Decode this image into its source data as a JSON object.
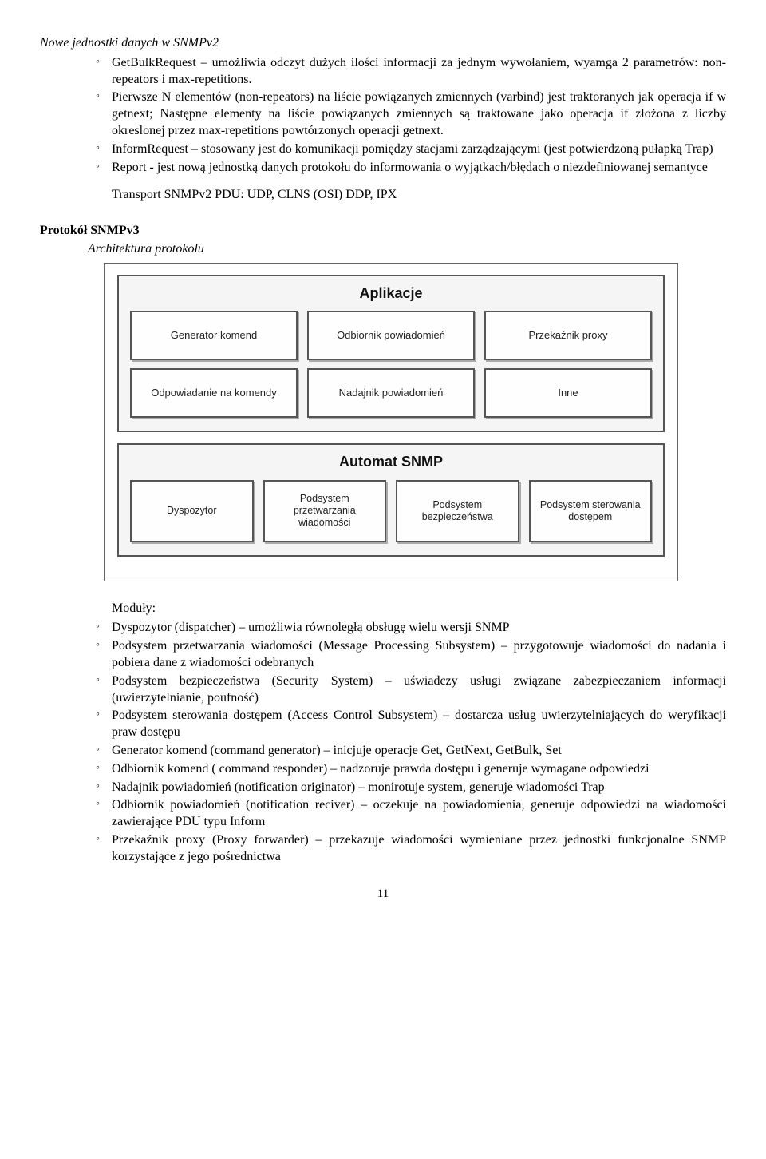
{
  "section1": {
    "title": "Nowe jednostki danych w SNMPv2",
    "items": [
      "GetBulkRequest – umożliwia odczyt dużych ilości informacji za jednym wywołaniem, wyamga 2 parametrów: non-repeators i max-repetitions.",
      "Pierwsze N elementów (non-repeators) na liście powiązanych zmiennych (varbind) jest traktoranych jak operacja if w getnext; Następne elementy na liście powiązanych zmiennych są traktowane jako operacja if złożona z liczby okreslonej przez max-repetitions powtórzonych operacji getnext.",
      "InformRequest – stosowany jest do komunikacji pomiędzy stacjami zarządzającymi (jest potwierdzoną pułapką Trap)",
      "Report  - jest nową jednostką danych protokołu do informowania o wyjątkach/błędach o niezdefiniowanej semantyce"
    ],
    "transport": "Transport SNMPv2 PDU: UDP, CLNS (OSI) DDP, IPX"
  },
  "section2": {
    "heading": "Protokół SNMPv3",
    "subheading": "Architektura protokołu"
  },
  "diagram": {
    "panel1": {
      "title": "Aplikacje",
      "row1": [
        "Generator komend",
        "Odbiornik powiadomień",
        "Przekaźnik proxy"
      ],
      "row2": [
        "Odpowiadanie na komendy",
        "Nadajnik powiadomień",
        "Inne"
      ]
    },
    "panel2": {
      "title": "Automat SNMP",
      "row": [
        "Dyspozytor",
        "Podsystem przetwarzania wiadomości",
        "Podsystem bezpieczeństwa",
        "Podsystem sterowania dostępem"
      ]
    },
    "colors": {
      "panel_bg": "#f5f5f5",
      "box_bg": "#fefefe",
      "border": "#555555",
      "shadow": "#aaaaaa"
    }
  },
  "section3": {
    "subtitle": "Moduły:",
    "items": [
      "Dyspozytor (dispatcher) – umożliwia równoległą obsługę wielu wersji SNMP",
      "Podsystem przetwarzania wiadomości (Message Processing Subsystem) – przygotowuje wiadomości do nadania i pobiera dane z wiadomości odebranych",
      "Podsystem bezpieczeństwa (Security System) – uświadczy usługi związane zabezpieczaniem informacji (uwierzytelnianie, poufność)",
      "Podsystem sterowania dostępem (Access Control Subsystem) – dostarcza usług uwierzytelniających do weryfikacji praw dostępu",
      "Generator komend (command generator) – inicjuje operacje Get, GetNext, GetBulk, Set",
      "Odbiornik komend ( command responder) – nadzoruje prawda dostępu i generuje wymagane odpowiedzi",
      "Nadajnik powiadomień (notification originator) – monirotuje system, generuje wiadomości Trap",
      "Odbiornik powiadomień (notification reciver) – oczekuje na powiadomienia, generuje odpowiedzi na wiadomości zawierające PDU typu Inform",
      "Przekaźnik proxy (Proxy forwarder) – przekazuje wiadomości wymieniane przez jednostki funkcjonalne SNMP korzystające z jego pośrednictwa"
    ]
  },
  "page_number": "11"
}
